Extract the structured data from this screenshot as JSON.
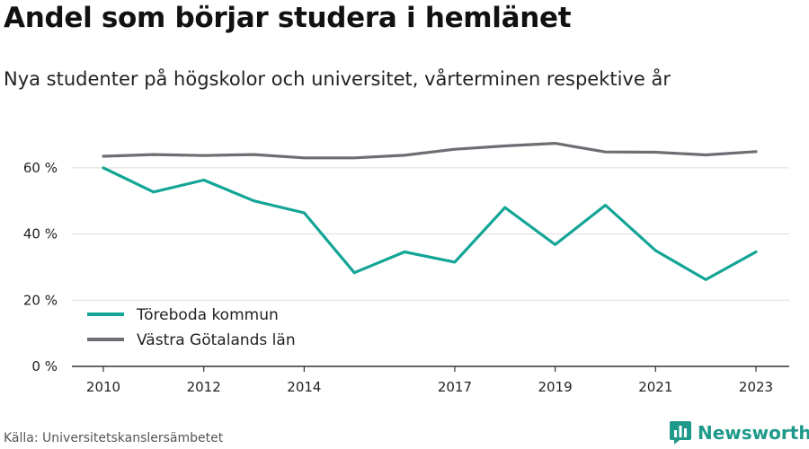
{
  "header": {
    "title": "Andel som börjar studera i hemlänet",
    "subtitle": "Nya studenter på högskolor och universitet, vårterminen respektive år"
  },
  "footer": {
    "source": "Källa: Universitetskanslersämbetet",
    "brand": "Newsworthy",
    "brand_icon": "bar-chart-logo-icon"
  },
  "colors": {
    "series_1": "#13a596",
    "series_2": "#6f6d73",
    "grid": "#dddddd",
    "axis": "#333333",
    "brand": "#1f9a8a"
  },
  "chart_data": {
    "type": "line",
    "title": "Andel som börjar studera i hemlänet",
    "subtitle": "Nya studenter på högskolor och universitet, vårterminen respektive år",
    "x": [
      2010,
      2011,
      2012,
      2013,
      2014,
      2015,
      2016,
      2017,
      2018,
      2019,
      2020,
      2021,
      2022,
      2023
    ],
    "x_tick_labels": [
      "2010",
      "2012",
      "2014",
      "2017",
      "2019",
      "2021",
      "2023"
    ],
    "y_tick_labels": [
      "0 %",
      "20 %",
      "40 %",
      "60 %"
    ],
    "y_ticks": [
      0,
      20,
      40,
      60
    ],
    "ylim": [
      0,
      70
    ],
    "xlim": [
      2010,
      2023
    ],
    "grid": true,
    "legend_position": "bottom-left",
    "series": [
      {
        "name": "Töreboda kommun",
        "values": [
          60,
          52.7,
          56.3,
          50,
          46.4,
          28.3,
          34.6,
          31.5,
          48,
          36.8,
          48.7,
          35,
          26.2,
          34.6
        ]
      },
      {
        "name": "Västra Götalands län",
        "values": [
          63.5,
          64,
          63.7,
          64,
          63,
          63,
          63.8,
          65.6,
          66.6,
          67.4,
          64.8,
          64.7,
          63.9,
          64.9
        ]
      }
    ]
  }
}
